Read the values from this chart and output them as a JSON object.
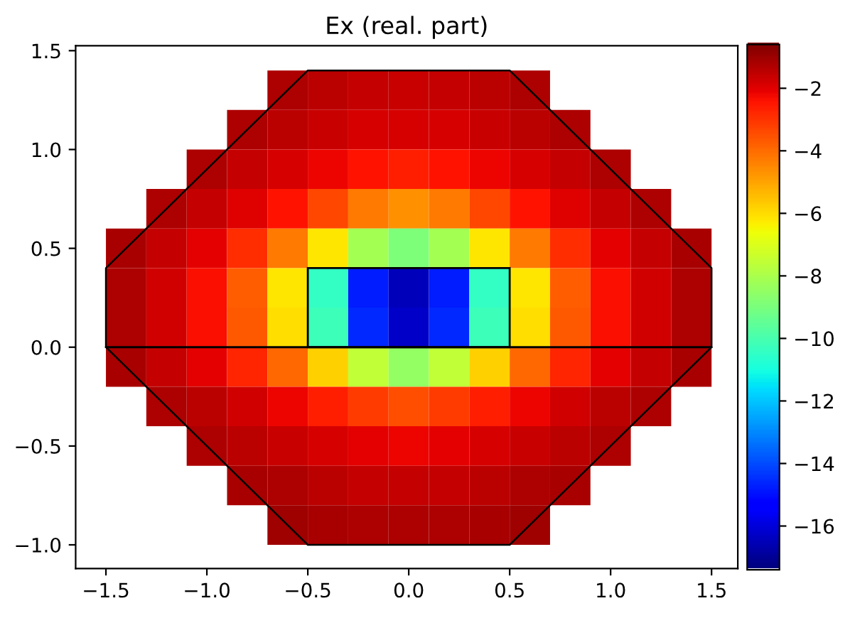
{
  "chart_data": {
    "type": "heatmap",
    "title": "Ex (real. part)",
    "x": [
      -1.4,
      -1.2,
      -1.0,
      -0.8,
      -0.6,
      -0.4,
      -0.2,
      0.0,
      0.2,
      0.4,
      0.6,
      0.8,
      1.0,
      1.2,
      1.4
    ],
    "y": [
      1.3,
      1.1,
      0.9,
      0.7,
      0.5,
      0.3,
      0.1,
      -0.1,
      -0.3,
      -0.5,
      -0.7,
      -0.9
    ],
    "cells": [
      [
        null,
        null,
        null,
        null,
        -1.3,
        -1.5,
        -1.6,
        -1.7,
        -1.6,
        -1.5,
        -1.3,
        null,
        null,
        null,
        null
      ],
      [
        null,
        null,
        null,
        -1.3,
        -1.5,
        -1.7,
        -1.9,
        -1.9,
        -1.9,
        -1.7,
        -1.5,
        -1.3,
        null,
        null,
        null
      ],
      [
        null,
        null,
        -1.3,
        -1.6,
        -1.9,
        -2.2,
        -2.5,
        -2.7,
        -2.5,
        -2.2,
        -1.9,
        -1.6,
        -1.3,
        null,
        null
      ],
      [
        null,
        -1.3,
        -1.6,
        -2.0,
        -2.5,
        -3.4,
        -4.3,
        -4.7,
        -4.3,
        -3.4,
        -2.5,
        -2.0,
        -1.6,
        -1.3,
        null
      ],
      [
        -1.2,
        -1.6,
        -2.1,
        -2.9,
        -4.3,
        -6.2,
        -8.2,
        -9.0,
        -8.2,
        -6.2,
        -4.3,
        -2.9,
        -2.1,
        -1.6,
        -1.2
      ],
      [
        -1.3,
        -1.8,
        -2.4,
        -3.8,
        -6.2,
        -10.5,
        -14.8,
        -16.5,
        -14.8,
        -10.5,
        -6.2,
        -3.8,
        -2.4,
        -1.8,
        -1.3
      ],
      [
        -1.3,
        -1.8,
        -2.4,
        -3.7,
        -6.1,
        -10.3,
        -14.6,
        -16.3,
        -14.6,
        -10.3,
        -6.1,
        -3.7,
        -2.4,
        -1.8,
        -1.3
      ],
      [
        -1.2,
        -1.6,
        -2.1,
        -2.8,
        -4.0,
        -5.8,
        -7.6,
        -8.5,
        -7.6,
        -5.8,
        -4.0,
        -2.8,
        -2.1,
        -1.6,
        -1.2
      ],
      [
        null,
        -1.3,
        -1.5,
        -1.8,
        -2.2,
        -2.7,
        -3.2,
        -3.5,
        -3.2,
        -2.7,
        -2.2,
        -1.8,
        -1.5,
        -1.3,
        null
      ],
      [
        null,
        null,
        -1.3,
        -1.5,
        -1.7,
        -1.9,
        -2.1,
        -2.2,
        -2.1,
        -1.9,
        -1.7,
        -1.5,
        -1.3,
        null,
        null
      ],
      [
        null,
        null,
        null,
        -1.2,
        -1.3,
        -1.5,
        -1.6,
        -1.6,
        -1.6,
        -1.5,
        -1.3,
        -1.2,
        null,
        null,
        null
      ],
      [
        null,
        null,
        null,
        null,
        -1.1,
        -1.2,
        -1.3,
        -1.3,
        -1.3,
        -1.2,
        -1.1,
        null,
        null,
        null,
        null
      ]
    ],
    "clim": [
      -17.4,
      -0.6
    ],
    "cticks": [
      -2,
      -4,
      -6,
      -8,
      -10,
      -12,
      -14,
      -16
    ],
    "xlim": [
      -1.65,
      1.63
    ],
    "ylim": [
      -1.12,
      1.525
    ],
    "xticks": [
      -1.5,
      {
        "value": -1,
        "label": "−1.0"
      },
      -0.5,
      {
        "value": 0,
        "label": "0.0"
      },
      0.5,
      {
        "value": 1,
        "label": "1.0"
      },
      1.5
    ],
    "yticks": [
      {
        "value": -1,
        "label": "−1.0"
      },
      -0.5,
      {
        "value": 0,
        "label": "0.0"
      },
      0.5,
      {
        "value": 1,
        "label": "1.0"
      },
      1.5
    ],
    "series": [
      {
        "type": "line",
        "color": "#000000",
        "x": [
          -1.5,
          -1.5,
          -0.5,
          0.5,
          1.5,
          1.5
        ],
        "values": [
          0,
          0.4,
          1.4,
          1.4,
          0.4,
          0
        ]
      },
      {
        "type": "line",
        "color": "#000000",
        "x": [
          -1.5,
          -0.5,
          0.5,
          1.5
        ],
        "values": [
          0,
          -1,
          -1,
          0
        ]
      }
    ],
    "ref_lines": [
      {
        "axis": "y",
        "value": 0,
        "color": "#000000"
      }
    ],
    "grid": false
  }
}
